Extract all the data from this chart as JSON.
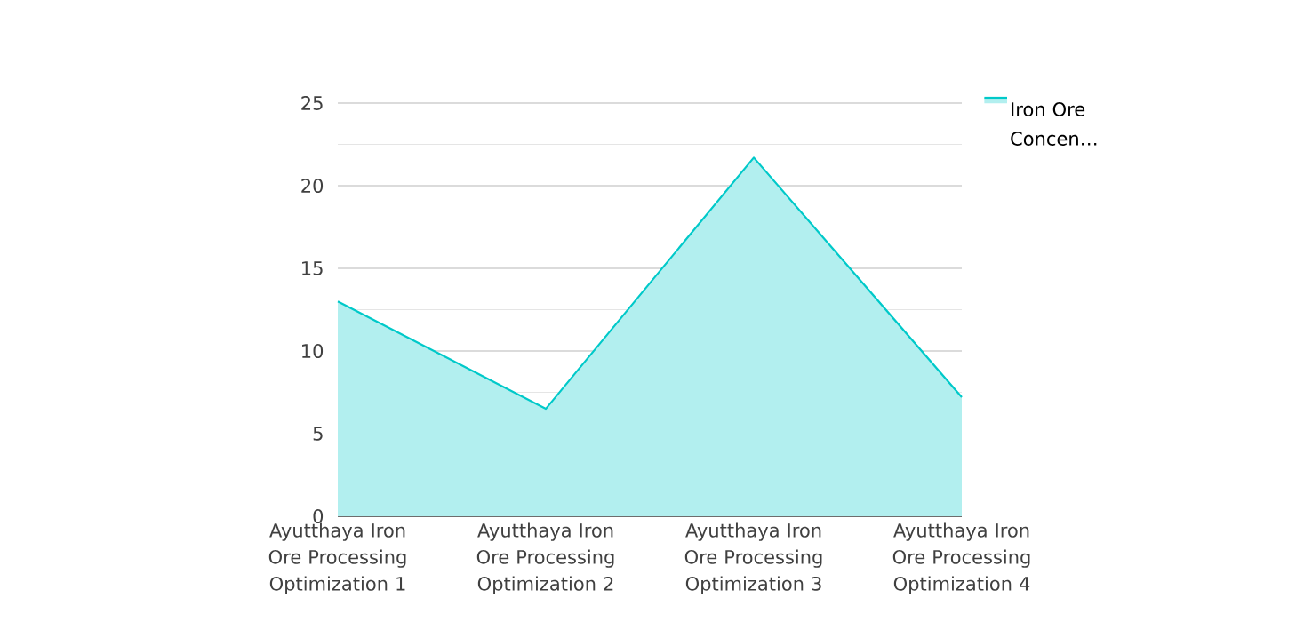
{
  "chart_data": {
    "type": "area",
    "categories": [
      "Ayutthaya Iron Ore Processing Optimization 1",
      "Ayutthaya Iron Ore Processing Optimization 2",
      "Ayutthaya Iron Ore Processing Optimization 3",
      "Ayutthaya Iron Ore Processing Optimization 4"
    ],
    "series": [
      {
        "name": "Iron Ore Concen…",
        "color": "#00c9c9",
        "values": [
          13,
          6.5,
          21.7,
          7.2
        ]
      }
    ],
    "ylim": [
      0,
      25
    ],
    "yticks": [
      0,
      {
        "value": 2.5,
        "label": null
      },
      5,
      {
        "value": 7.5,
        "label": null
      },
      10,
      {
        "value": 12.5,
        "label": null
      },
      15,
      {
        "value": 17.5,
        "label": null
      },
      20,
      {
        "value": 22.5,
        "label": null
      },
      25
    ],
    "grid": "y",
    "legend": "top right"
  }
}
